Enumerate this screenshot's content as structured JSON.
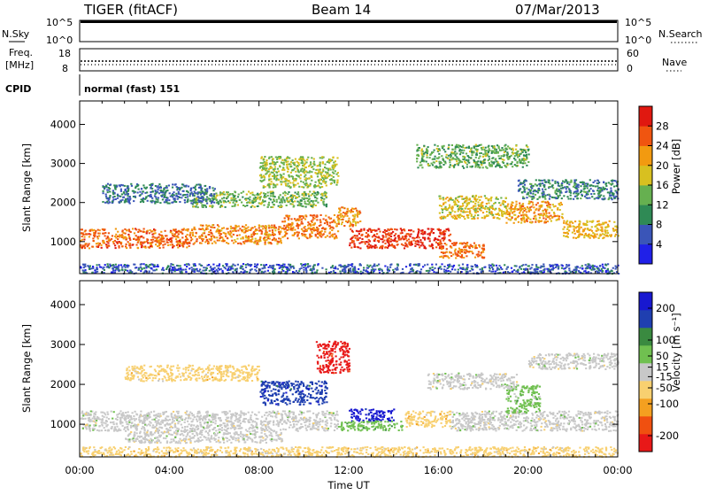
{
  "header": {
    "radar": "TIGER (fitACF)",
    "beam": "Beam 14",
    "date": "07/Mar/2013"
  },
  "meta": {
    "nsky_label": "N.Sky",
    "nsky_ticks": [
      "10^5",
      "10^0"
    ],
    "nsearch_label": "N.Search",
    "nsearch_ticks": [
      "10^5",
      "10^0"
    ],
    "freq_label_1": "Freq.",
    "freq_label_2": "[MHz]",
    "freq_ticks": [
      "18",
      "8"
    ],
    "nave_label": "Nave",
    "nave_ticks": [
      "60",
      "0"
    ],
    "cpid_label": "CPID",
    "cpid_value": "normal (fast) 151"
  },
  "colors": {
    "power": [
      "#2020e8",
      "#3a55b8",
      "#2f8a55",
      "#66b050",
      "#d8c020",
      "#f29a10",
      "#f05510",
      "#e01810"
    ],
    "velocity": [
      "#e81818",
      "#f05010",
      "#f4a020",
      "#f8d070",
      "#c8c8c8",
      "#70c050",
      "#3a8a40",
      "#1f3fb0",
      "#1818d0"
    ]
  },
  "chart_data": [
    {
      "type": "heatmap",
      "name": "power",
      "ylabel": "Slant Range [km]",
      "xlabel": "Time UT",
      "x_ticks": [
        "00:00",
        "04:00",
        "08:00",
        "12:00",
        "16:00",
        "20:00",
        "00:00"
      ],
      "xlim_hours": [
        0,
        24
      ],
      "y_ticks": [
        1000,
        2000,
        3000,
        4000
      ],
      "ylim": [
        180,
        4600
      ],
      "colorbar": {
        "label": "Power [dB]",
        "ticks": [
          4,
          8,
          12,
          16,
          20,
          24,
          28
        ],
        "range": [
          0,
          32
        ]
      },
      "bands": [
        {
          "x0": 0.0,
          "x1": 5.0,
          "y0": 850,
          "y1": 1350,
          "v": 25
        },
        {
          "x0": 5.0,
          "x1": 9.0,
          "y0": 950,
          "y1": 1450,
          "v": 23
        },
        {
          "x0": 9.0,
          "x1": 11.5,
          "y0": 1100,
          "y1": 1700,
          "v": 24
        },
        {
          "x0": 11.5,
          "x1": 12.5,
          "y0": 1400,
          "y1": 1900,
          "v": 22
        },
        {
          "x0": 12.0,
          "x1": 16.5,
          "y0": 850,
          "y1": 1350,
          "v": 28
        },
        {
          "x0": 16.0,
          "x1": 18.0,
          "y0": 600,
          "y1": 1000,
          "v": 24
        },
        {
          "x0": 16.0,
          "x1": 19.0,
          "y0": 1600,
          "y1": 2200,
          "v": 18
        },
        {
          "x0": 19.0,
          "x1": 21.5,
          "y0": 1500,
          "y1": 2050,
          "v": 22
        },
        {
          "x0": 21.5,
          "x1": 24.0,
          "y0": 1100,
          "y1": 1550,
          "v": 20
        },
        {
          "x0": 5.0,
          "x1": 11.0,
          "y0": 1900,
          "y1": 2300,
          "v": 14
        },
        {
          "x0": 1.0,
          "x1": 6.0,
          "y0": 2000,
          "y1": 2500,
          "v": 8
        },
        {
          "x0": 19.5,
          "x1": 24.0,
          "y0": 2100,
          "y1": 2600,
          "v": 9
        },
        {
          "x0": 8.0,
          "x1": 11.5,
          "y0": 2400,
          "y1": 3200,
          "v": 16
        },
        {
          "x0": 15.0,
          "x1": 20.0,
          "y0": 2900,
          "y1": 3500,
          "v": 13
        },
        {
          "x0": 0.0,
          "x1": 24.0,
          "y0": 200,
          "y1": 450,
          "v": 6
        }
      ]
    },
    {
      "type": "heatmap",
      "name": "velocity",
      "ylabel": "Slant Range [km]",
      "xlabel": "Time UT",
      "x_ticks": [
        "00:00",
        "04:00",
        "08:00",
        "12:00",
        "16:00",
        "20:00",
        "00:00"
      ],
      "xlim_hours": [
        0,
        24
      ],
      "y_ticks": [
        1000,
        2000,
        3000,
        4000
      ],
      "ylim": [
        180,
        4600
      ],
      "colorbar": {
        "label": "Velocity [m s⁻¹]",
        "ticks": [
          -200,
          -100,
          -50,
          -15,
          15,
          50,
          100,
          200
        ],
        "range": [
          -250,
          250
        ]
      },
      "bands": [
        {
          "x0": 0.0,
          "x1": 11.5,
          "y0": 850,
          "y1": 1350,
          "v": 0
        },
        {
          "x0": 2.0,
          "x1": 9.0,
          "y0": 550,
          "y1": 850,
          "v": 0
        },
        {
          "x0": 8.0,
          "x1": 11.0,
          "y0": 1500,
          "y1": 2100,
          "v": 180
        },
        {
          "x0": 10.5,
          "x1": 12.0,
          "y0": 2300,
          "y1": 3100,
          "v": -210
        },
        {
          "x0": 12.0,
          "x1": 14.0,
          "y0": 1100,
          "y1": 1400,
          "v": 210
        },
        {
          "x0": 11.5,
          "x1": 14.5,
          "y0": 850,
          "y1": 1100,
          "v": 60
        },
        {
          "x0": 14.5,
          "x1": 16.5,
          "y0": 950,
          "y1": 1350,
          "v": -60
        },
        {
          "x0": 16.5,
          "x1": 24.0,
          "y0": 850,
          "y1": 1350,
          "v": 0
        },
        {
          "x0": 19.0,
          "x1": 20.5,
          "y0": 1300,
          "y1": 2000,
          "v": 40
        },
        {
          "x0": 15.5,
          "x1": 19.5,
          "y0": 1900,
          "y1": 2300,
          "v": 0
        },
        {
          "x0": 0.0,
          "x1": 24.0,
          "y0": 200,
          "y1": 450,
          "v": -40
        },
        {
          "x0": 2.0,
          "x1": 8.0,
          "y0": 2100,
          "y1": 2500,
          "v": -40
        },
        {
          "x0": 20.0,
          "x1": 24.0,
          "y0": 2400,
          "y1": 2800,
          "v": 0
        }
      ]
    }
  ]
}
